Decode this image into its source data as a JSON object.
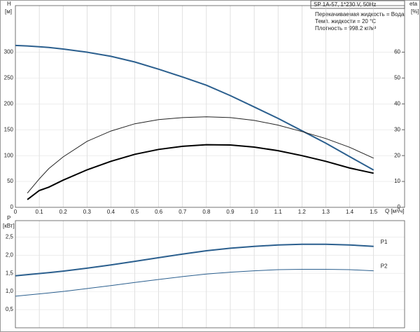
{
  "chart_data": [
    {
      "type": "line",
      "y_label": "H",
      "y_unit": "[м]",
      "y2_label": "eta",
      "y2_unit": "[%]",
      "x_label": "Q [м³/ч]",
      "box_title": "SP 1A-57, 1*230 V, 50Hz",
      "notes": [
        "Перекачиваемая жидкость = Вода",
        "Темп. жидкости = 20 °C",
        "Плотность = 998.2 кг/м³"
      ],
      "x": [
        0,
        0.05,
        0.1,
        0.14,
        0.2,
        0.3,
        0.4,
        0.5,
        0.6,
        0.7,
        0.8,
        0.9,
        1.0,
        1.1,
        1.2,
        1.3,
        1.4,
        1.5
      ],
      "xlim": [
        0,
        1.63
      ],
      "xticks": [
        0,
        0.1,
        0.2,
        0.3,
        0.4,
        0.5,
        0.6,
        0.7,
        0.8,
        0.9,
        {
          "value": 1,
          "label": "1.0"
        },
        1.1,
        1.2,
        1.3,
        1.4,
        1.5
      ],
      "ylim": [
        0,
        390
      ],
      "yticks": [
        0,
        50,
        100,
        150,
        200,
        250,
        300
      ],
      "y2lim": [
        0,
        78
      ],
      "y2ticks": [
        0,
        10,
        20,
        30,
        40,
        50,
        60
      ],
      "grid": true,
      "series": [
        {
          "color": "#2b5f8e",
          "width": 2,
          "values": [
            313,
            312,
            310.5,
            309,
            306,
            300,
            292,
            281,
            267,
            252,
            236,
            216,
            194,
            172,
            148,
            124,
            98,
            72
          ]
        },
        {
          "color": "#222222",
          "width": 1,
          "axis": "y2",
          "values": [
            null,
            5.5,
            11,
            15,
            19.5,
            25.5,
            29.5,
            32.3,
            33.9,
            34.7,
            35,
            34.7,
            33.6,
            31.8,
            29.3,
            26.6,
            23.2,
            19
          ]
        },
        {
          "color": "#000000",
          "width": 2,
          "axis": "y2",
          "values": [
            null,
            3,
            6.5,
            7.8,
            10.5,
            14.5,
            17.8,
            20.5,
            22.4,
            23.6,
            24.2,
            24.1,
            23.3,
            21.9,
            20,
            17.8,
            15.2,
            13.2
          ]
        }
      ]
    },
    {
      "type": "line",
      "y_label": "P",
      "y_unit": "[кВт]",
      "x": [
        0,
        0.14,
        0.2,
        0.3,
        0.4,
        0.5,
        0.6,
        0.7,
        0.8,
        0.9,
        1.0,
        1.1,
        1.2,
        1.3,
        1.4,
        1.5
      ],
      "xlim": [
        0,
        1.63
      ],
      "xticks": [
        0,
        0.1,
        0.2,
        0.3,
        0.4,
        0.5,
        0.6,
        0.7,
        0.8,
        0.9,
        1,
        1.1,
        1.2,
        1.3,
        1.4,
        1.5
      ],
      "ylim": [
        0,
        2.95
      ],
      "yticks": [
        {
          "value": 0.5,
          "label": "0,5"
        },
        {
          "value": 1,
          "label": "1,0"
        },
        {
          "value": 1.5,
          "label": "1,5"
        },
        {
          "value": 2,
          "label": "2,0"
        },
        {
          "value": 2.5,
          "label": "2,5"
        }
      ],
      "grid": true,
      "series": [
        {
          "name": "P1",
          "color": "#2b5f8e",
          "width": 2,
          "values": [
            1.43,
            1.52,
            1.56,
            1.64,
            1.73,
            1.83,
            1.93,
            2.03,
            2.12,
            2.19,
            2.24,
            2.28,
            2.3,
            2.3,
            2.28,
            2.24
          ]
        },
        {
          "name": "P2",
          "color": "#2b5f8e",
          "width": 1,
          "values": [
            0.87,
            0.96,
            1.0,
            1.08,
            1.16,
            1.25,
            1.33,
            1.41,
            1.48,
            1.53,
            1.57,
            1.6,
            1.61,
            1.61,
            1.6,
            1.57
          ]
        }
      ]
    }
  ]
}
